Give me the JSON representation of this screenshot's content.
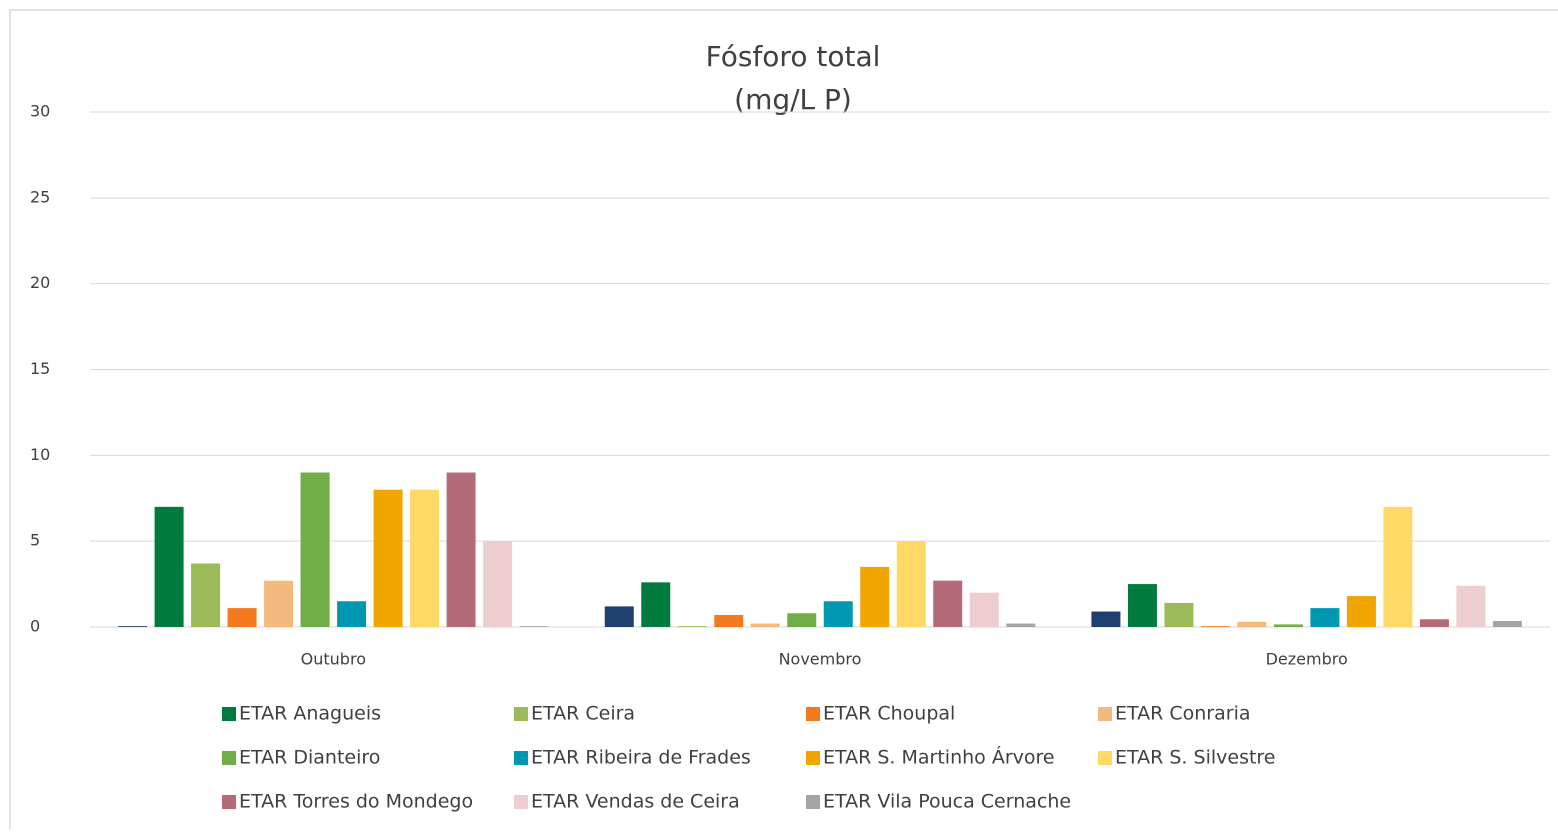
{
  "chart_data": {
    "type": "bar",
    "title": "Fósforo total",
    "subtitle": "(mg/L P)",
    "categories": [
      "Outubro",
      "Novembro",
      "Dezembro"
    ],
    "series": [
      {
        "name": null,
        "color": "#1f3f6e",
        "values": [
          0.05,
          1.2,
          0.9
        ]
      },
      {
        "name": "ETAR Anagueis",
        "color": "#007a3d",
        "values": [
          7,
          2.6,
          2.5
        ]
      },
      {
        "name": "ETAR Ceira",
        "color": "#9bbb59",
        "values": [
          3.7,
          0.05,
          1.4
        ]
      },
      {
        "name": "ETAR Choupal",
        "color": "#f47a20",
        "values": [
          1.1,
          0.7,
          0.05
        ]
      },
      {
        "name": "ETAR Conraria",
        "color": "#f4b97f",
        "values": [
          2.7,
          0.2,
          0.3
        ]
      },
      {
        "name": "ETAR Dianteiro",
        "color": "#70ad47",
        "values": [
          9,
          0.8,
          0.15
        ]
      },
      {
        "name": "ETAR Ribeira de Frades",
        "color": "#0097b2",
        "values": [
          1.5,
          1.5,
          1.1
        ]
      },
      {
        "name": "ETAR S. Martinho Árvore",
        "color": "#f0a500",
        "values": [
          8,
          3.5,
          1.8
        ]
      },
      {
        "name": "ETAR S. Silvestre",
        "color": "#ffd966",
        "values": [
          8,
          5,
          7
        ]
      },
      {
        "name": "ETAR Torres do Mondego",
        "color": "#b56b77",
        "values": [
          9,
          2.7,
          0.45
        ]
      },
      {
        "name": "ETAR Vendas de Ceira",
        "color": "#eecdd0",
        "values": [
          5,
          2,
          2.4
        ]
      },
      {
        "name": "ETAR Vila Pouca Cernache",
        "color": "#a5a5a5",
        "values": [
          0.05,
          0.2,
          0.35
        ]
      }
    ],
    "ylim": [
      0,
      30
    ],
    "yticks": [
      0,
      5,
      10,
      15,
      20,
      25,
      30
    ],
    "grid": true,
    "legend": "bottom"
  }
}
